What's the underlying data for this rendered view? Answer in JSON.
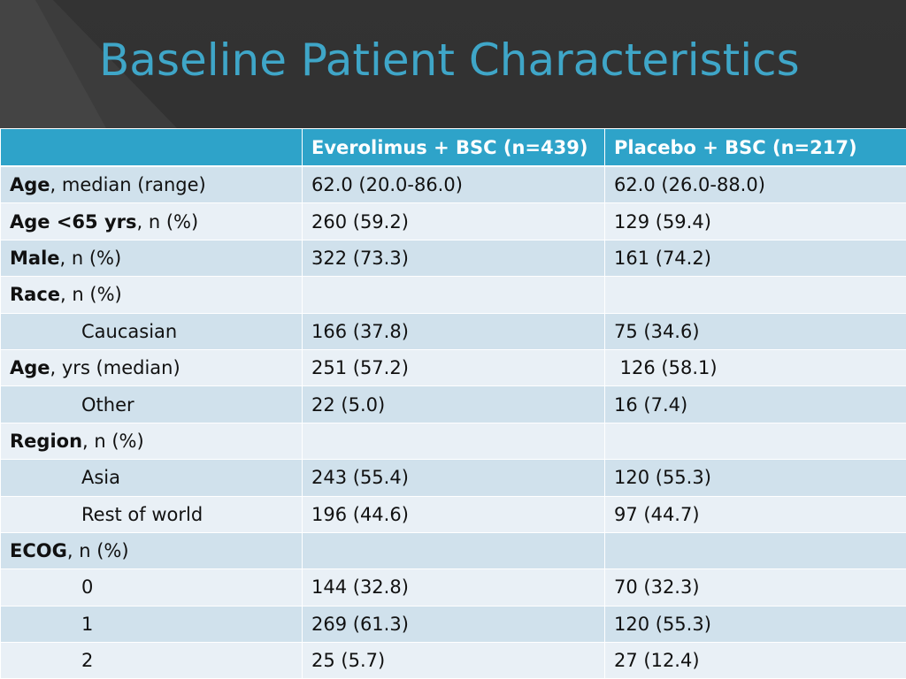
{
  "slide": {
    "title": "Baseline Patient Characteristics"
  },
  "table": {
    "headers": [
      "",
      "Everolimus + BSC (n=439)",
      "Placebo + BSC (n=217)"
    ],
    "rows": [
      {
        "label_bold": "Age",
        "label_rest": ", median (range)",
        "everolimus": "62.0 (20.0-86.0)",
        "placebo": "62.0 (26.0-88.0)"
      },
      {
        "label_bold": "Age <65 yrs",
        "label_rest": ", n (%)",
        "everolimus": "260 (59.2)",
        "placebo": "129 (59.4)"
      },
      {
        "label_bold": "Male",
        "label_rest": ", n (%)",
        "everolimus": "322 (73.3)",
        "placebo": "161 (74.2)"
      },
      {
        "label_bold": "Race",
        "label_rest": ", n (%)",
        "everolimus": "",
        "placebo": ""
      },
      {
        "label_indent": "Caucasian",
        "everolimus": "166 (37.8)",
        "placebo": "75 (34.6)"
      },
      {
        "label_bold": "Age",
        "label_rest": ", yrs (median)",
        "everolimus": "251 (57.2)",
        "placebo": " 126 (58.1)"
      },
      {
        "label_indent": "Other",
        "everolimus": "22 (5.0)",
        "placebo": "16 (7.4)"
      },
      {
        "label_bold": "Region",
        "label_rest": ", n (%)",
        "everolimus": "",
        "placebo": ""
      },
      {
        "label_indent": "Asia",
        "everolimus": "243 (55.4)",
        "placebo": "120 (55.3)"
      },
      {
        "label_indent": "Rest of world",
        "everolimus": "196 (44.6)",
        "placebo": "97 (44.7)"
      },
      {
        "label_bold": "ECOG",
        "label_rest": ", n (%)",
        "everolimus": "",
        "placebo": ""
      },
      {
        "label_indent": "0",
        "everolimus": "144 (32.8)",
        "placebo": "70 (32.3)"
      },
      {
        "label_indent": "1",
        "everolimus": "269 (61.3)",
        "placebo": "120 (55.3)"
      },
      {
        "label_indent": "2",
        "everolimus": "25 (5.7)",
        "placebo": "27 (12.4)"
      }
    ]
  },
  "colors": {
    "title": "#3fa6c8",
    "header_bg": "#2ea3c9",
    "row_dark": "#d0e1ec",
    "row_light": "#e9f0f6",
    "background": "#2e2e2e"
  }
}
